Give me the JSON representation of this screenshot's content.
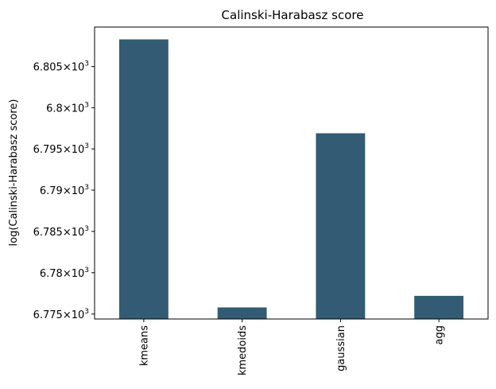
{
  "chart_data": {
    "type": "bar",
    "title": "Calinski-Harabasz score",
    "xlabel": "",
    "ylabel": "log(Calinski-Harabasz score)",
    "categories": [
      "kmeans",
      "kmedoids",
      "gaussian",
      "agg"
    ],
    "values": [
      6808.3,
      6775.8,
      6796.9,
      6777.2
    ],
    "ylim": [
      6774.4,
      6809.8
    ],
    "y_scale": "log",
    "y_ticks": [
      {
        "value": 6775,
        "mantissa": "6.775"
      },
      {
        "value": 6780,
        "mantissa": "6.78"
      },
      {
        "value": 6785,
        "mantissa": "6.785"
      },
      {
        "value": 6790,
        "mantissa": "6.79"
      },
      {
        "value": 6795,
        "mantissa": "6.795"
      },
      {
        "value": 6800,
        "mantissa": "6.8"
      },
      {
        "value": 6805,
        "mantissa": "6.805"
      }
    ],
    "tick_multiplier_base": "10",
    "tick_multiplier_exp": "3",
    "bar_color": "#335c74",
    "grid": false,
    "category_label_rotation": "vertical"
  }
}
